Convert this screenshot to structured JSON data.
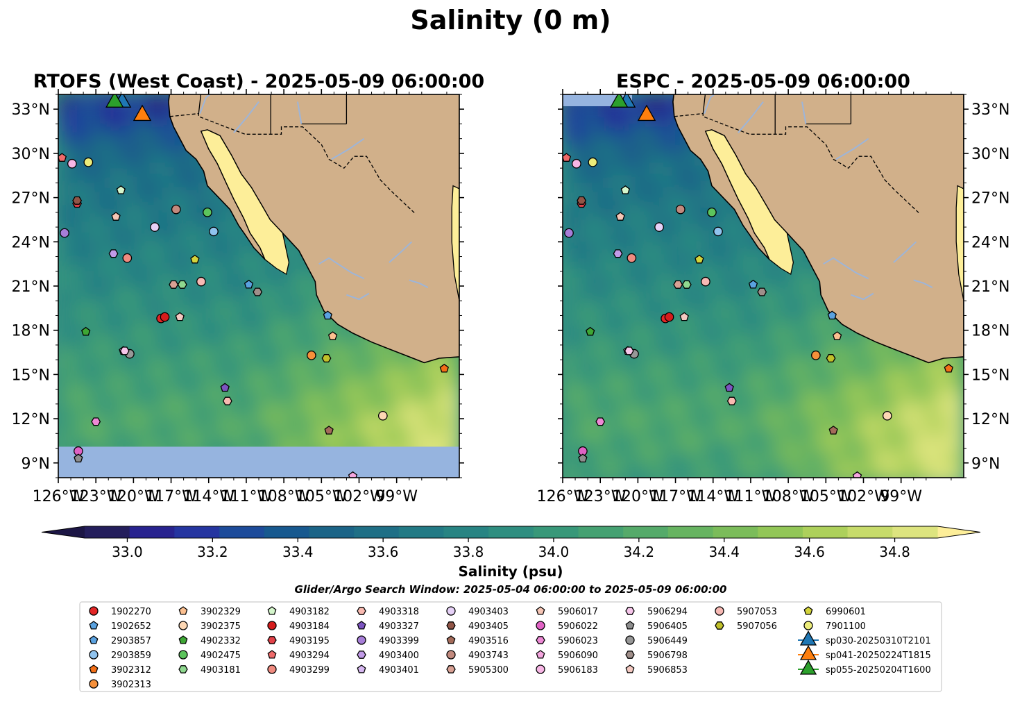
{
  "figure": {
    "suptitle": "Salinity (0 m)",
    "colorbar_label": "Salinity (psu)",
    "search_window": "Glider/Argo Search Window: 2025-05-04 06:00:00 to 2025-05-09 06:00:00"
  },
  "chart_data": [
    {
      "type": "heatmap",
      "title": "RTOFS (West Coast) - 2025-05-09 06:00:00",
      "xlim": [
        -126,
        -94
      ],
      "ylim": [
        8,
        34
      ],
      "x_ticks": [
        "126°W",
        "123°W",
        "120°W",
        "117°W",
        "114°W",
        "111°W",
        "108°W",
        "105°W",
        "102°W",
        "99°W"
      ],
      "y_ticks": [
        "9°N",
        "12°N",
        "15°N",
        "18°N",
        "21°N",
        "24°N",
        "27°N",
        "30°N",
        "33°N"
      ],
      "y_tick_side": "left",
      "no_data_south_of": 10.1,
      "field_range": [
        33.0,
        34.9
      ]
    },
    {
      "type": "heatmap",
      "title": "ESPC - 2025-05-09 06:00:00",
      "xlim": [
        -126,
        -94
      ],
      "ylim": [
        8,
        34
      ],
      "x_ticks": [
        "126°W",
        "123°W",
        "120°W",
        "117°W",
        "114°W",
        "111°W",
        "108°W",
        "105°W",
        "102°W",
        "99°W"
      ],
      "y_ticks": [
        "9°N",
        "12°N",
        "15°N",
        "18°N",
        "21°N",
        "24°N",
        "27°N",
        "30°N",
        "33°N"
      ],
      "y_tick_side": "right",
      "field_range": [
        33.0,
        34.9
      ]
    }
  ],
  "colorbar": {
    "min": 32.9,
    "max": 34.9,
    "ticks": [
      "33.0",
      "33.2",
      "33.4",
      "33.6",
      "33.8",
      "34.0",
      "34.2",
      "34.4",
      "34.6",
      "34.8"
    ],
    "colors": [
      "#241e5c",
      "#28238f",
      "#2535a0",
      "#1d4b9a",
      "#17598f",
      "#1b6487",
      "#1f6f86",
      "#237a85",
      "#288483",
      "#2f8e80",
      "#389879",
      "#45a172",
      "#55aa6a",
      "#67b461",
      "#7bbc5a",
      "#92c657",
      "#add05b",
      "#c7db6b",
      "#dde47f"
    ],
    "extend_low": "#1c1645",
    "extend_high": "#fdee99"
  },
  "markers": [
    {
      "id": "1902270",
      "lon": -117.8,
      "lat": 18.8,
      "shape": "circle",
      "color": "#e32626"
    },
    {
      "id": "1902652",
      "lon": -110.8,
      "lat": 21.1,
      "shape": "pentagon",
      "color": "#5aa2e0"
    },
    {
      "id": "2903857",
      "lon": -104.5,
      "lat": 19.0,
      "shape": "pentagon",
      "color": "#5aa2e0"
    },
    {
      "id": "2903859",
      "lon": -113.6,
      "lat": 24.7,
      "shape": "circle",
      "color": "#90c3ee"
    },
    {
      "id": "3902312",
      "lon": -95.2,
      "lat": 15.4,
      "shape": "pentagon",
      "color": "#f36f17"
    },
    {
      "id": "3902313",
      "lon": -105.8,
      "lat": 16.3,
      "shape": "circle",
      "color": "#f6903a"
    },
    {
      "id": "3902329",
      "lon": -104.1,
      "lat": 17.6,
      "shape": "pentagon",
      "color": "#fcc090"
    },
    {
      "id": "3902375",
      "lon": -100.1,
      "lat": 12.2,
      "shape": "circle",
      "color": "#fdd7b4"
    },
    {
      "id": "4902332",
      "lon": -123.8,
      "lat": 17.9,
      "shape": "pentagon",
      "color": "#3ea635"
    },
    {
      "id": "4902475",
      "lon": -114.1,
      "lat": 26.0,
      "shape": "circle",
      "color": "#5cc45c"
    },
    {
      "id": "4903181",
      "lon": -116.1,
      "lat": 21.1,
      "shape": "hexagon",
      "color": "#8fd88f"
    },
    {
      "id": "4903182",
      "lon": -121.0,
      "lat": 27.5,
      "shape": "pentagon",
      "color": "#d5f6cc"
    },
    {
      "id": "4903184",
      "lon": -117.5,
      "lat": 18.9,
      "shape": "circle",
      "color": "#d51c1c"
    },
    {
      "id": "4903195",
      "lon": -124.5,
      "lat": 26.6,
      "shape": "hexagon",
      "color": "#e24148"
    },
    {
      "id": "4903294",
      "lon": -125.7,
      "lat": 29.7,
      "shape": "pentagon",
      "color": "#ee6a6a"
    },
    {
      "id": "4903299",
      "lon": -120.5,
      "lat": 22.9,
      "shape": "circle",
      "color": "#f08b80"
    },
    {
      "id": "4903318",
      "lon": -112.5,
      "lat": 13.2,
      "shape": "hexagon",
      "color": "#f9bab1"
    },
    {
      "id": "4903327",
      "lon": -112.7,
      "lat": 14.1,
      "shape": "pentagon",
      "color": "#7c54c0"
    },
    {
      "id": "4903399",
      "lon": -125.5,
      "lat": 24.6,
      "shape": "circle",
      "color": "#a77ed8"
    },
    {
      "id": "4903400",
      "lon": -121.6,
      "lat": 23.2,
      "shape": "hexagon",
      "color": "#c29be8"
    },
    {
      "id": "4903401",
      "lon": -120.8,
      "lat": 16.6,
      "shape": "pentagon",
      "color": "#d7b8f1"
    },
    {
      "id": "4903403",
      "lon": -118.3,
      "lat": 25.0,
      "shape": "circle",
      "color": "#e6d1f7"
    },
    {
      "id": "4903405",
      "lon": -124.5,
      "lat": 26.8,
      "shape": "hexagon",
      "color": "#915547"
    },
    {
      "id": "4903516",
      "lon": -104.4,
      "lat": 11.2,
      "shape": "pentagon",
      "color": "#a46b5a"
    },
    {
      "id": "4903743",
      "lon": -116.6,
      "lat": 26.2,
      "shape": "circle",
      "color": "#c28a7e"
    },
    {
      "id": "5905300",
      "lon": -116.8,
      "lat": 21.1,
      "shape": "hexagon",
      "color": "#d9a194"
    },
    {
      "id": "5906017",
      "lon": -121.4,
      "lat": 25.7,
      "shape": "pentagon",
      "color": "#f6c6b6"
    },
    {
      "id": "5906022",
      "lon": -124.4,
      "lat": 9.8,
      "shape": "circle",
      "color": "#e062c4"
    },
    {
      "id": "5906023",
      "lon": -123.0,
      "lat": 11.8,
      "shape": "hexagon",
      "color": "#ed89d5"
    },
    {
      "id": "5906090",
      "lon": -102.5,
      "lat": 8.1,
      "shape": "pentagon",
      "color": "#f5a6df"
    },
    {
      "id": "5906183",
      "lon": -124.9,
      "lat": 29.3,
      "shape": "circle",
      "color": "#f7b6e5"
    },
    {
      "id": "5906294",
      "lon": -120.7,
      "lat": 16.6,
      "shape": "hexagon",
      "color": "#f6c6ea"
    },
    {
      "id": "5906405",
      "lon": -124.4,
      "lat": 9.3,
      "shape": "pentagon",
      "color": "#8e8e8e"
    },
    {
      "id": "5906449",
      "lon": -120.3,
      "lat": 16.4,
      "shape": "circle",
      "color": "#989898"
    },
    {
      "id": "5906798",
      "lon": -110.1,
      "lat": 20.6,
      "shape": "hexagon",
      "color": "#a08f8a"
    },
    {
      "id": "5906853",
      "lon": -116.3,
      "lat": 18.9,
      "shape": "pentagon",
      "color": "#f4c9c1"
    },
    {
      "id": "5907053",
      "lon": -114.6,
      "lat": 21.3,
      "shape": "circle",
      "color": "#f7b9b4"
    },
    {
      "id": "5907056",
      "lon": -104.6,
      "lat": 16.1,
      "shape": "hexagon",
      "color": "#c0c02a"
    },
    {
      "id": "6990601",
      "lon": -115.1,
      "lat": 22.8,
      "shape": "pentagon",
      "color": "#d4d43c"
    },
    {
      "id": "7901100",
      "lon": -123.6,
      "lat": 29.4,
      "shape": "circle",
      "color": "#ecec7a"
    },
    {
      "id": "sp030-20250310T2101",
      "lon": -120.9,
      "lat": 33.5,
      "shape": "triangle",
      "color": "#1f77b4",
      "glider": true
    },
    {
      "id": "sp041-20250224T1815",
      "lon": -119.3,
      "lat": 32.6,
      "shape": "triangle",
      "color": "#ff7f0e",
      "glider": true
    },
    {
      "id": "sp055-20250204T1600",
      "lon": -121.5,
      "lat": 33.5,
      "shape": "triangle",
      "color": "#2ca02c",
      "glider": true
    }
  ]
}
